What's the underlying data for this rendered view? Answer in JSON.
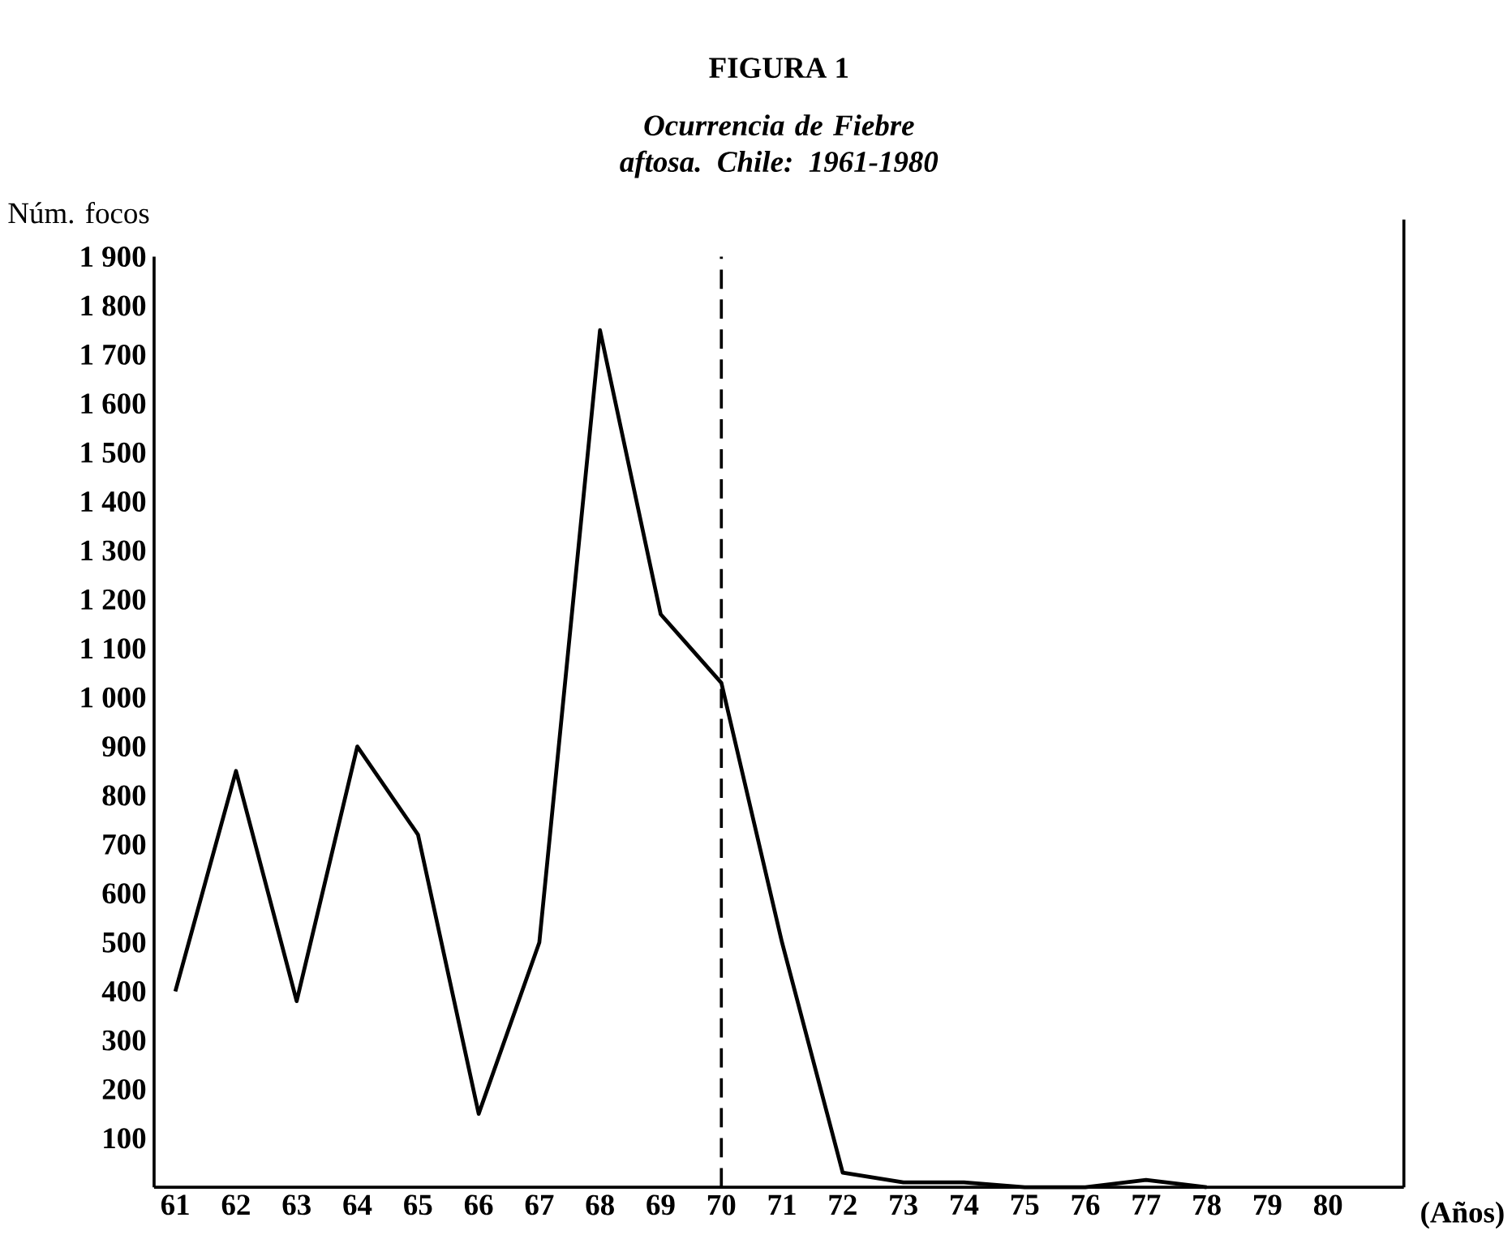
{
  "chart_data": {
    "type": "line",
    "title": "FIGURA 1",
    "subtitle": "Ocurrencia de Fiebre aftosa. Chile: 1961-1980",
    "ylabel": "Núm. focos",
    "xlabel": "(Años)",
    "categories": [
      "61",
      "62",
      "63",
      "64",
      "65",
      "66",
      "67",
      "68",
      "69",
      "70",
      "71",
      "72",
      "73",
      "74",
      "75",
      "76",
      "77",
      "78",
      "79",
      "80"
    ],
    "values": [
      400,
      850,
      380,
      900,
      720,
      150,
      500,
      1750,
      1170,
      1030,
      500,
      30,
      10,
      10,
      0,
      0,
      15,
      0,
      null,
      null
    ],
    "color": "#000000",
    "line_style": "solid",
    "marker": "none",
    "grid": false,
    "ylim": [
      0,
      1900
    ],
    "yticks": [
      100,
      200,
      300,
      400,
      500,
      600,
      700,
      800,
      900,
      {
        "value": 1000,
        "label": "1 000"
      },
      {
        "value": 1100,
        "label": "1 100"
      },
      {
        "value": 1200,
        "label": "1 200"
      },
      {
        "value": 1300,
        "label": "1 300"
      },
      {
        "value": 1400,
        "label": "1 400"
      },
      {
        "value": 1500,
        "label": "1 500"
      },
      {
        "value": 1600,
        "label": "1 600"
      },
      {
        "value": 1700,
        "label": "1 700"
      },
      {
        "value": 1800,
        "label": "1 800"
      },
      {
        "value": 1900,
        "label": "1 900"
      }
    ],
    "ref_lines": [
      {
        "axis": "x",
        "value": "70",
        "line_style": "dashed"
      }
    ]
  }
}
